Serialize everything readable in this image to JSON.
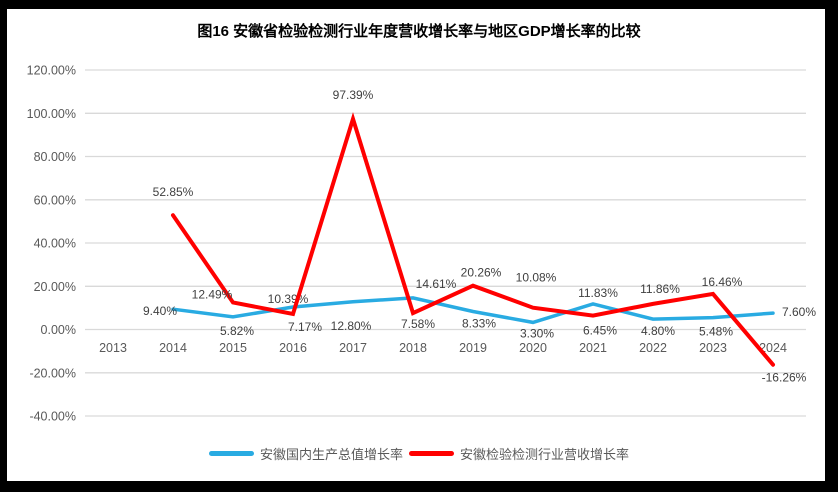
{
  "title": "图16 安徽省检验检测行业年度营收增长率与地区GDP增长率的比较",
  "colors": {
    "background": "#FFFFFF",
    "frame": "#000000",
    "grid": "#D9D9D9",
    "tick_text": "#595959",
    "data_label_text": "#404040",
    "gdp_series": "#29ABE2",
    "revenue_series": "#FF0000"
  },
  "chart_data": {
    "type": "line",
    "title": "图16 安徽省检验检测行业年度营收增长率与地区GDP增长率的比较",
    "categories": [
      "2013",
      "2014",
      "2015",
      "2016",
      "2017",
      "2018",
      "2019",
      "2020",
      "2021",
      "2022",
      "2023",
      "2024"
    ],
    "y_axis": {
      "min": -40,
      "max": 120,
      "step": 20,
      "format": "percent",
      "ticks": [
        "120.00%",
        "100.00%",
        "80.00%",
        "60.00%",
        "40.00%",
        "20.00%",
        "0.00%",
        "-20.00%",
        "-40.00%"
      ]
    },
    "grid": true,
    "legend_position": "bottom",
    "series": [
      {
        "id": "gdp-growth",
        "name": "安徽国内生产总值增长率",
        "color": "#29ABE2",
        "stroke_width": 3.5,
        "values": [
          null,
          9.4,
          5.82,
          10.39,
          12.8,
          14.61,
          8.33,
          3.3,
          11.83,
          4.8,
          5.48,
          7.6
        ],
        "labels": [
          null,
          {
            "t": "9.40%",
            "dx": -13,
            "dy": 6
          },
          {
            "t": "5.82%",
            "dx": 4,
            "dy": 18
          },
          {
            "t": "10.39%",
            "dx": -5,
            "dy": -4
          },
          {
            "t": "12.80%",
            "dx": -2,
            "dy": 28
          },
          {
            "t": "14.61%",
            "dx": 23,
            "dy": -10
          },
          {
            "t": "8.33%",
            "dx": 6,
            "dy": 16
          },
          {
            "t": "3.30%",
            "dx": 4,
            "dy": 15
          },
          {
            "t": "11.83%",
            "dx": 5,
            "dy": -7
          },
          {
            "t": "4.80%",
            "dx": 5,
            "dy": 16
          },
          {
            "t": "5.48%",
            "dx": 3,
            "dy": 18
          },
          {
            "t": "7.60%",
            "dx": 9,
            "dy": 3,
            "anchor": "start"
          }
        ]
      },
      {
        "id": "revenue-growth",
        "name": "安徽检验检测行业营收增长率",
        "color": "#FF0000",
        "stroke_width": 4,
        "values": [
          null,
          52.85,
          12.49,
          7.17,
          97.39,
          7.58,
          20.26,
          10.08,
          6.45,
          11.86,
          16.46,
          -16.26
        ],
        "labels": [
          null,
          {
            "t": "52.85%",
            "dx": 0,
            "dy": -19
          },
          {
            "t": "12.49%",
            "dx": -21,
            "dy": -4
          },
          {
            "t": "7.17%",
            "dx": 12,
            "dy": 17
          },
          {
            "t": "97.39%",
            "dx": 0,
            "dy": -20
          },
          {
            "t": "7.58%",
            "dx": 5,
            "dy": 15
          },
          {
            "t": "20.26%",
            "dx": 8,
            "dy": -9
          },
          {
            "t": "10.08%",
            "dx": 3,
            "dy": -26
          },
          {
            "t": "6.45%",
            "dx": 7,
            "dy": 19
          },
          {
            "t": "11.86%",
            "dx": 7,
            "dy": -11
          },
          {
            "t": "16.46%",
            "dx": 9,
            "dy": -8
          },
          {
            "t": "-16.26%",
            "dx": 11,
            "dy": 17
          }
        ]
      }
    ]
  }
}
